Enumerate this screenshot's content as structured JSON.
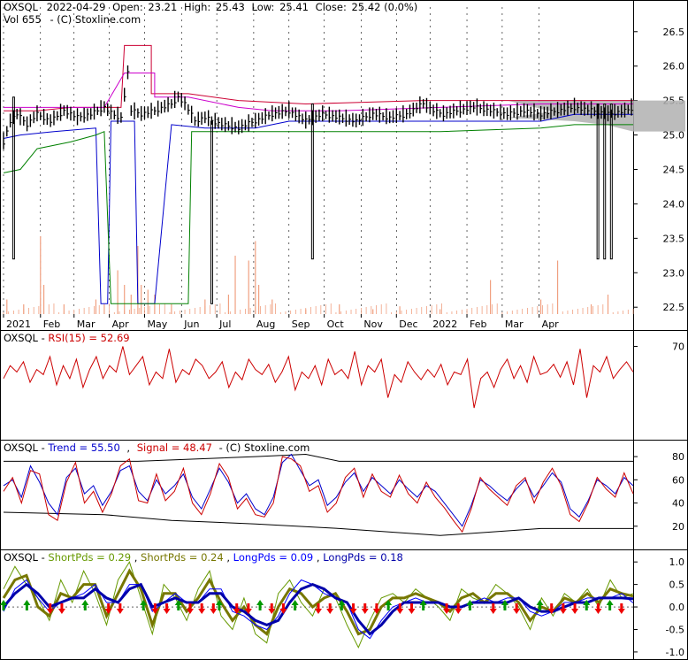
{
  "header": {
    "symbol": "OXSQL",
    "date": "2022-04-29",
    "open_label": "Open:",
    "open": "23.21",
    "high_label": "High:",
    "high": "25.43",
    "low_label": "Low:",
    "low": "25.41",
    "close_label": "Close:",
    "close": "25.42 (0.0%)",
    "vol_line": "Vol 655",
    "copyright": "-  (C) Stoxline.com"
  },
  "colors": {
    "price": "#000000",
    "upper_band": "#cc0033",
    "mid_band": "#cc00cc",
    "lower_band": "#0000cc",
    "long_band": "#008000",
    "volume": "#f0a080",
    "cloud": "#b0b0b0",
    "rsi": "#cc0000",
    "trend": "#0000cc",
    "signal": "#cc0000",
    "short_a": "#669900",
    "short_b": "#777700",
    "long_a": "#0000ff",
    "long_b": "#0000aa",
    "buy_arrow": "#009900",
    "sell_arrow": "#ee0000",
    "grid": "#000000"
  },
  "chart_data": [
    {
      "name": "price",
      "type": "candlestick",
      "ylim": [
        22.4,
        26.6
      ],
      "y_ticks": [
        22.5,
        23.0,
        23.5,
        24.0,
        24.5,
        25.0,
        25.5,
        26.0,
        26.5
      ],
      "y_tick_labels": [
        "22.5",
        "23.0",
        "23.5",
        "24.0",
        "24.5",
        "25.0",
        "25.5",
        "26.0",
        "26.5"
      ],
      "x_labels": [
        "2021",
        "Feb",
        "Mar",
        "Apr",
        "May",
        "Jun",
        "Jul",
        "Aug",
        "Sep",
        "Oct",
        "Nov",
        "Dec",
        "2022",
        "Feb",
        "Mar",
        "Apr"
      ],
      "close_path": [
        [
          0,
          24.9
        ],
        [
          4,
          25.2
        ],
        [
          8,
          25.3
        ],
        [
          14,
          25.15
        ],
        [
          20,
          25.3
        ],
        [
          28,
          25.2
        ],
        [
          36,
          25.35
        ],
        [
          44,
          25.25
        ],
        [
          52,
          25.3
        ],
        [
          60,
          25.4
        ],
        [
          65,
          25.3
        ],
        [
          70,
          25.25
        ],
        [
          74,
          25.9
        ],
        [
          76,
          25.35
        ],
        [
          82,
          25.3
        ],
        [
          90,
          25.35
        ],
        [
          100,
          25.45
        ],
        [
          104,
          25.55
        ],
        [
          108,
          25.45
        ],
        [
          114,
          25.2
        ],
        [
          120,
          25.25
        ],
        [
          130,
          25.15
        ],
        [
          140,
          25.1
        ],
        [
          150,
          25.2
        ],
        [
          160,
          25.3
        ],
        [
          170,
          25.35
        ],
        [
          180,
          25.2
        ],
        [
          190,
          25.3
        ],
        [
          200,
          25.25
        ],
        [
          210,
          25.2
        ],
        [
          220,
          25.3
        ],
        [
          230,
          25.25
        ],
        [
          240,
          25.3
        ],
        [
          250,
          25.45
        ],
        [
          256,
          25.35
        ],
        [
          262,
          25.3
        ],
        [
          270,
          25.35
        ],
        [
          280,
          25.4
        ],
        [
          290,
          25.35
        ],
        [
          300,
          25.3
        ],
        [
          310,
          25.35
        ],
        [
          320,
          25.3
        ],
        [
          330,
          25.35
        ],
        [
          340,
          25.4
        ],
        [
          350,
          25.35
        ],
        [
          360,
          25.3
        ],
        [
          370,
          25.35
        ],
        [
          375,
          25.4
        ]
      ],
      "spike_bars": [
        [
          6,
          23.2,
          25.55
        ],
        [
          124,
          22.55,
          25.2
        ],
        [
          184,
          23.2,
          25.45
        ],
        [
          354,
          23.2,
          25.45
        ],
        [
          358,
          23.2,
          25.45
        ],
        [
          362,
          23.2,
          25.45
        ]
      ],
      "upper_band_path": [
        [
          0,
          25.35
        ],
        [
          20,
          25.35
        ],
        [
          40,
          25.4
        ],
        [
          70,
          25.4
        ],
        [
          72,
          26.3
        ],
        [
          88,
          26.3
        ],
        [
          88,
          25.6
        ],
        [
          110,
          25.6
        ],
        [
          140,
          25.5
        ],
        [
          180,
          25.45
        ],
        [
          250,
          25.5
        ],
        [
          340,
          25.5
        ],
        [
          375,
          25.5
        ]
      ],
      "mid_band_path": [
        [
          0,
          25.4
        ],
        [
          30,
          25.4
        ],
        [
          60,
          25.4
        ],
        [
          72,
          25.9
        ],
        [
          90,
          25.9
        ],
        [
          90,
          25.55
        ],
        [
          110,
          25.55
        ],
        [
          140,
          25.4
        ],
        [
          160,
          25.35
        ],
        [
          200,
          25.35
        ],
        [
          260,
          25.4
        ],
        [
          320,
          25.45
        ],
        [
          375,
          25.45
        ]
      ],
      "lower_band_path": [
        [
          0,
          24.95
        ],
        [
          10,
          25.0
        ],
        [
          30,
          25.05
        ],
        [
          55,
          25.1
        ],
        [
          58,
          22.55
        ],
        [
          62,
          22.55
        ],
        [
          64,
          25.2
        ],
        [
          78,
          25.2
        ],
        [
          80,
          22.55
        ],
        [
          90,
          22.55
        ],
        [
          100,
          25.15
        ],
        [
          120,
          25.1
        ],
        [
          150,
          25.1
        ],
        [
          170,
          25.2
        ],
        [
          200,
          25.2
        ],
        [
          260,
          25.2
        ],
        [
          320,
          25.2
        ],
        [
          340,
          25.3
        ],
        [
          375,
          25.3
        ]
      ],
      "long_band_path": [
        [
          0,
          24.45
        ],
        [
          10,
          24.5
        ],
        [
          20,
          24.8
        ],
        [
          40,
          24.9
        ],
        [
          55,
          25.0
        ],
        [
          60,
          25.05
        ],
        [
          64,
          22.55
        ],
        [
          110,
          22.55
        ],
        [
          112,
          25.05
        ],
        [
          170,
          25.05
        ],
        [
          260,
          25.05
        ],
        [
          320,
          25.1
        ],
        [
          340,
          25.15
        ],
        [
          375,
          25.15
        ]
      ],
      "volume_bars": [
        [
          2,
          0.15
        ],
        [
          12,
          0.1
        ],
        [
          22,
          0.8
        ],
        [
          24,
          0.3
        ],
        [
          36,
          0.1
        ],
        [
          55,
          0.15
        ],
        [
          60,
          0.1
        ],
        [
          68,
          0.45
        ],
        [
          72,
          0.3
        ],
        [
          76,
          0.2
        ],
        [
          80,
          0.7
        ],
        [
          82,
          0.3
        ],
        [
          86,
          0.25
        ],
        [
          90,
          0.2
        ],
        [
          100,
          0.1
        ],
        [
          120,
          0.15
        ],
        [
          134,
          0.2
        ],
        [
          138,
          0.6
        ],
        [
          146,
          0.55
        ],
        [
          150,
          0.75
        ],
        [
          152,
          0.3
        ],
        [
          160,
          0.15
        ],
        [
          180,
          0.05
        ],
        [
          200,
          0.1
        ],
        [
          220,
          0.05
        ],
        [
          236,
          0.08
        ],
        [
          260,
          0.05
        ],
        [
          290,
          0.35
        ],
        [
          320,
          0.15
        ],
        [
          330,
          0.55
        ],
        [
          350,
          0.1
        ],
        [
          360,
          0.2
        ]
      ]
    },
    {
      "name": "rsi",
      "type": "line",
      "title_prefix": "OXSQL - ",
      "series_label": "RSI(15) = 52.69",
      "ylim": [
        0,
        80
      ],
      "y_ticks": [
        70
      ],
      "y_tick_labels": [
        "70"
      ],
      "values": [
        45,
        55,
        50,
        58,
        42,
        52,
        48,
        62,
        40,
        55,
        45,
        60,
        38,
        52,
        62,
        45,
        55,
        50,
        70,
        48,
        55,
        62,
        40,
        50,
        45,
        68,
        42,
        52,
        48,
        60,
        55,
        45,
        50,
        58,
        38,
        50,
        44,
        60,
        52,
        48,
        56,
        42,
        50,
        62,
        36,
        50,
        45,
        55,
        40,
        60,
        48,
        52,
        45,
        66,
        40,
        55,
        50,
        60,
        30,
        48,
        42,
        58,
        50,
        44,
        52,
        46,
        56,
        40,
        50,
        48,
        60,
        22,
        45,
        50,
        38,
        52,
        60,
        45,
        55,
        42,
        62,
        48,
        50,
        56,
        46,
        58,
        40,
        68,
        30,
        55,
        50,
        62,
        45,
        52,
        58,
        50
      ]
    },
    {
      "name": "trend",
      "type": "line",
      "title_prefix": "OXSQL - ",
      "series": [
        {
          "name": "Trend = 55.50",
          "values": [
            55,
            60,
            45,
            72,
            58,
            40,
            30,
            62,
            70,
            48,
            55,
            38,
            50,
            68,
            72,
            50,
            42,
            60,
            48,
            55,
            65,
            45,
            35,
            52,
            70,
            58,
            40,
            48,
            35,
            30,
            45,
            75,
            82,
            68,
            55,
            60,
            38,
            45,
            58,
            66,
            50,
            62,
            55,
            48,
            60,
            52,
            45,
            55,
            50,
            40,
            30,
            20,
            38,
            60,
            55,
            48,
            42,
            52,
            60,
            45,
            55,
            66,
            58,
            35,
            28,
            42,
            60,
            55,
            48,
            62,
            55
          ]
        },
        {
          "name": "Signal = 48.47",
          "values": [
            50,
            62,
            40,
            68,
            65,
            30,
            25,
            58,
            75,
            40,
            50,
            32,
            48,
            72,
            78,
            42,
            40,
            65,
            42,
            50,
            70,
            40,
            30,
            48,
            74,
            62,
            35,
            44,
            30,
            28,
            40,
            80,
            78,
            72,
            50,
            55,
            32,
            40,
            62,
            70,
            45,
            65,
            50,
            45,
            64,
            48,
            40,
            58,
            45,
            36,
            25,
            15,
            35,
            62,
            52,
            45,
            38,
            55,
            62,
            40,
            58,
            70,
            55,
            30,
            24,
            40,
            62,
            52,
            45,
            66,
            48
          ]
        }
      ],
      "credit": "-  (C) Stoxline.com",
      "ylim": [
        0,
        90
      ],
      "y_ticks": [
        20,
        40,
        60,
        80
      ],
      "y_tick_labels": [
        "20",
        "40",
        "60",
        "80"
      ]
    },
    {
      "name": "pds",
      "type": "line",
      "title_prefix": "OXSQL - ",
      "series": [
        {
          "name": "ShortPds = 0.29",
          "values": [
            0.4,
            0.9,
            0.5,
            0.2,
            -0.3,
            0.6,
            0.1,
            0.8,
            0.3,
            -0.4,
            0.6,
            1.0,
            0.2,
            -0.6,
            0.5,
            0.2,
            -0.3,
            0.4,
            0.8,
            -0.2,
            -0.5,
            0.2,
            -0.6,
            -0.8,
            0.3,
            0.6,
            0.1,
            -0.2,
            0.4,
            0.2,
            -0.4,
            -0.9,
            -0.3,
            0.2,
            0.3,
            0.1,
            0.4,
            0.2,
            0.0,
            -0.3,
            0.4,
            0.2,
            0.1,
            0.5,
            0.3,
            0.0,
            -0.5,
            0.2,
            -0.2,
            0.3,
            0.1,
            0.4,
            0.0,
            0.6,
            0.2,
            0.3
          ]
        },
        {
          "name": "ShortPds = 0.24",
          "values": [
            0.2,
            0.6,
            0.7,
            0.0,
            -0.2,
            0.3,
            0.2,
            0.5,
            0.5,
            -0.2,
            0.3,
            0.8,
            0.4,
            -0.4,
            0.3,
            0.3,
            -0.1,
            0.2,
            0.6,
            0.1,
            -0.3,
            0.0,
            -0.4,
            -0.6,
            0.0,
            0.4,
            0.3,
            0.0,
            0.2,
            0.3,
            -0.1,
            -0.6,
            -0.5,
            0.0,
            0.2,
            0.2,
            0.3,
            0.2,
            0.1,
            -0.1,
            0.2,
            0.3,
            0.1,
            0.3,
            0.3,
            0.1,
            -0.3,
            0.0,
            -0.1,
            0.2,
            0.1,
            0.3,
            0.1,
            0.4,
            0.3,
            0.24
          ]
        },
        {
          "name": "LongPds = 0.09",
          "values": [
            -0.1,
            0.4,
            0.6,
            0.2,
            -0.1,
            0.1,
            0.2,
            0.3,
            0.5,
            0.1,
            0.1,
            0.5,
            0.5,
            -0.1,
            0.1,
            0.3,
            0.1,
            0.1,
            0.4,
            0.4,
            -0.1,
            -0.2,
            -0.4,
            -0.5,
            -0.2,
            0.3,
            0.6,
            0.5,
            0.3,
            0.2,
            0.1,
            -0.5,
            -0.7,
            -0.3,
            0.0,
            0.1,
            0.2,
            0.1,
            0.1,
            0.0,
            0.0,
            0.1,
            0.2,
            0.1,
            0.2,
            0.2,
            -0.1,
            -0.2,
            -0.1,
            0.1,
            0.1,
            0.2,
            0.2,
            0.2,
            0.3,
            0.09
          ]
        },
        {
          "name": "LongPds = 0.18",
          "values": [
            0.0,
            0.3,
            0.5,
            0.3,
            0.0,
            0.1,
            0.2,
            0.2,
            0.4,
            0.2,
            0.1,
            0.4,
            0.5,
            0.0,
            0.1,
            0.2,
            0.1,
            0.1,
            0.3,
            0.3,
            0.0,
            -0.1,
            -0.3,
            -0.4,
            -0.3,
            0.1,
            0.4,
            0.5,
            0.4,
            0.2,
            0.1,
            -0.3,
            -0.6,
            -0.4,
            -0.1,
            0.1,
            0.1,
            0.1,
            0.1,
            0.0,
            0.0,
            0.1,
            0.1,
            0.1,
            0.1,
            0.2,
            0.0,
            -0.1,
            -0.1,
            0.0,
            0.1,
            0.1,
            0.2,
            0.2,
            0.2,
            0.18
          ]
        }
      ],
      "ylim": [
        -1.1,
        1.2
      ],
      "y_ticks": [
        1.0,
        0.5,
        0.0,
        -0.5,
        -1.0
      ],
      "y_tick_labels": [
        "1.0",
        "0.5",
        "0.0",
        "-0.5",
        "-1.0"
      ],
      "buy_arrows": [
        0,
        4,
        14,
        24,
        30,
        37,
        44,
        50,
        58,
        66,
        72,
        80,
        86,
        92,
        100,
        104
      ],
      "sell_arrows": [
        8,
        10,
        18,
        20,
        26,
        28,
        32,
        34,
        36,
        40,
        42,
        46,
        48,
        54,
        56,
        60,
        62,
        64,
        68,
        70,
        76,
        78,
        84,
        88,
        94,
        96,
        98,
        102,
        106
      ]
    }
  ]
}
